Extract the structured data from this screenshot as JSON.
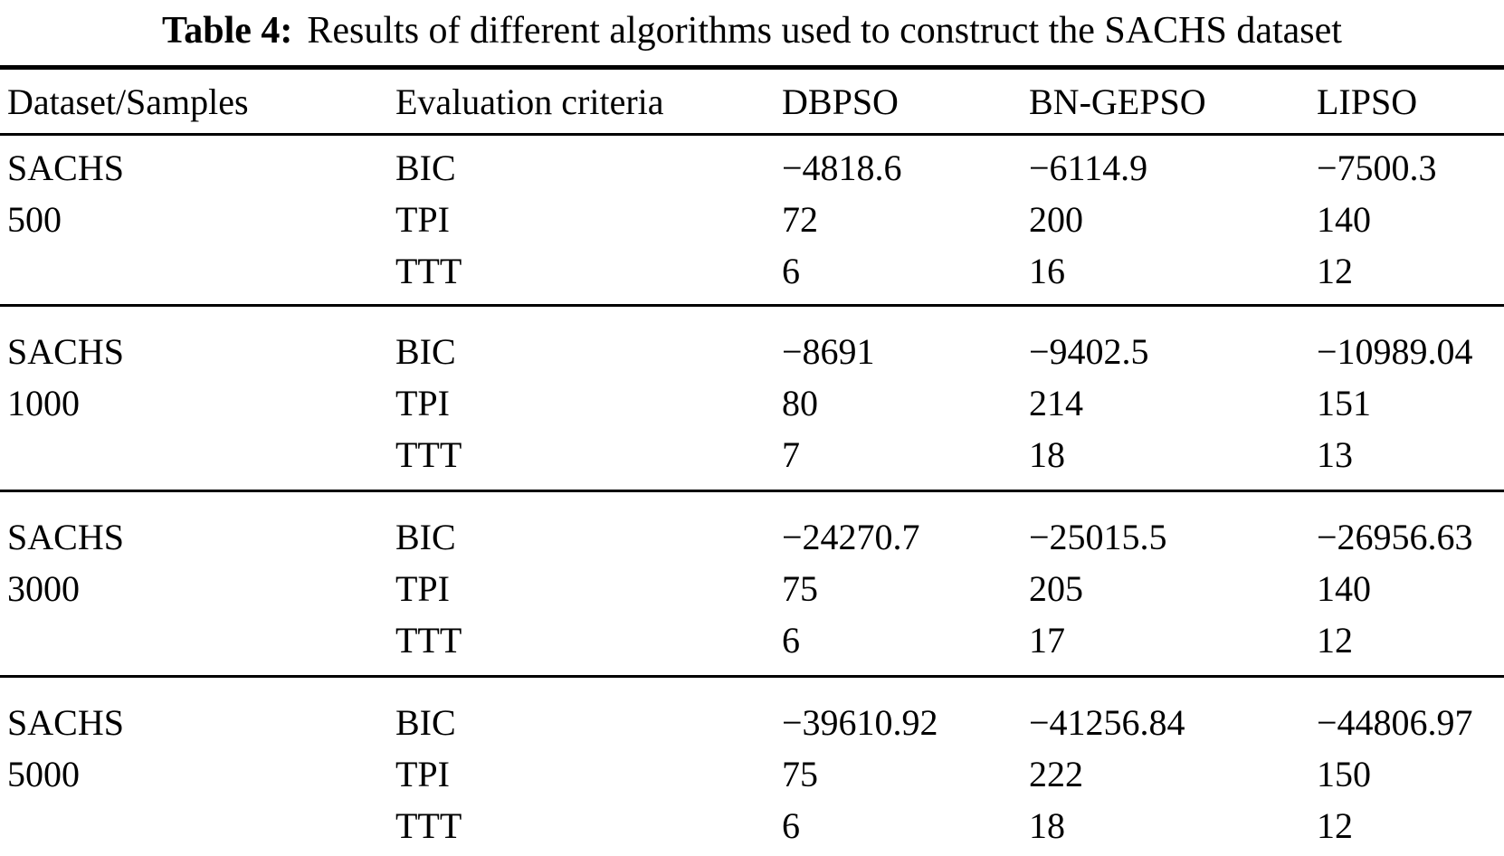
{
  "page": {
    "background_color": "#ffffff",
    "text_color": "#000000",
    "rule_color": "#000000"
  },
  "title": {
    "label": "Table 4:",
    "text": "Results of different algorithms used to construct the SACHS dataset"
  },
  "table": {
    "columns": [
      "Dataset/Samples",
      "Evaluation criteria",
      "DBPSO",
      "BN-GEPSO",
      "LIPSO"
    ],
    "groups": [
      {
        "dataset": "SACHS",
        "samples": "500",
        "rows": [
          {
            "criterion": "BIC",
            "values": [
              "−4818.6",
              "−6114.9",
              "−7500.3"
            ]
          },
          {
            "criterion": "TPI",
            "values": [
              "72",
              "200",
              "140"
            ]
          },
          {
            "criterion": "TTT",
            "values": [
              "6",
              "16",
              "12"
            ]
          }
        ]
      },
      {
        "dataset": "SACHS",
        "samples": "1000",
        "rows": [
          {
            "criterion": "BIC",
            "values": [
              "−8691",
              "−9402.5",
              "−10989.04"
            ]
          },
          {
            "criterion": "TPI",
            "values": [
              "80",
              "214",
              "151"
            ]
          },
          {
            "criterion": "TTT",
            "values": [
              "7",
              "18",
              "13"
            ]
          }
        ]
      },
      {
        "dataset": "SACHS",
        "samples": "3000",
        "rows": [
          {
            "criterion": "BIC",
            "values": [
              "−24270.7",
              "−25015.5",
              "−26956.63"
            ]
          },
          {
            "criterion": "TPI",
            "values": [
              "75",
              "205",
              "140"
            ]
          },
          {
            "criterion": "TTT",
            "values": [
              "6",
              "17",
              "12"
            ]
          }
        ]
      },
      {
        "dataset": "SACHS",
        "samples": "5000",
        "rows": [
          {
            "criterion": "BIC",
            "values": [
              "−39610.92",
              "−41256.84",
              "−44806.97"
            ]
          },
          {
            "criterion": "TPI",
            "values": [
              "75",
              "222",
              "150"
            ]
          },
          {
            "criterion": "TTT",
            "values": [
              "6",
              "18",
              "12"
            ]
          }
        ]
      }
    ]
  }
}
